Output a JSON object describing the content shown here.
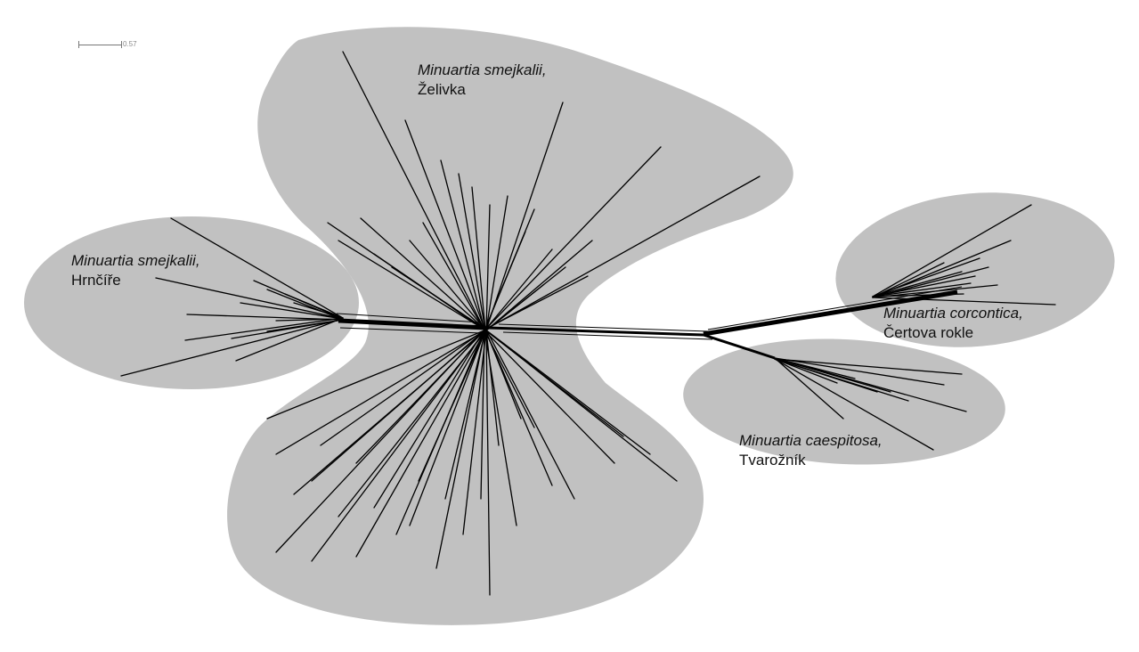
{
  "scale_bar": {
    "value": "0.57"
  },
  "groups": [
    {
      "id": "zelivka",
      "species": "Minuartia smejkalii,",
      "locality": "Želivka"
    },
    {
      "id": "hrncire",
      "species": "Minuartia smejkalii,",
      "locality": "Hrnčíře"
    },
    {
      "id": "certova",
      "species": "Minuartia corcontica,",
      "locality": "Čertova rokle"
    },
    {
      "id": "tvaroznik",
      "species": "Minuartia caespitosa,",
      "locality": "Tvarožník"
    }
  ],
  "colors": {
    "cluster_fill": "#c1c1c1",
    "edges": "#000000",
    "background": "#ffffff"
  }
}
